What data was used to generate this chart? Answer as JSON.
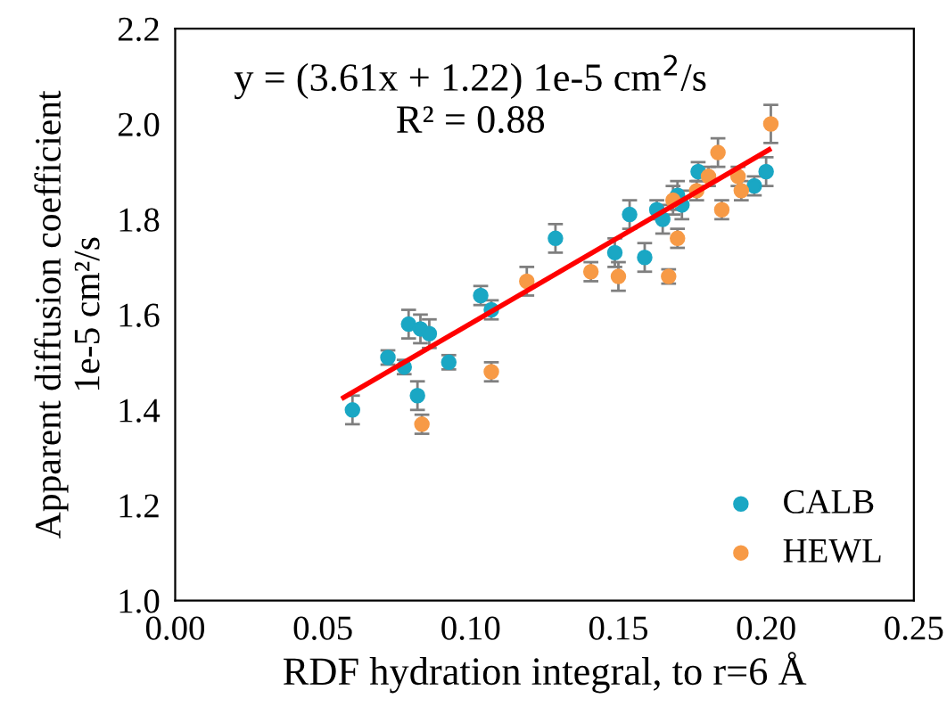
{
  "chart_data": {
    "type": "scatter",
    "xlabel": "RDF hydration integral, to r=6 Å",
    "ylabel": "Apparent diffusion coefficient\n1e-5 cm²/s",
    "series": [
      {
        "name": "CALB",
        "color": "#1aa7c4",
        "x": [
          0.06,
          0.072,
          0.0775,
          0.079,
          0.083,
          0.086,
          0.082,
          0.0926,
          0.1034,
          0.107,
          0.1287,
          0.1488,
          0.1538,
          0.1589,
          0.163,
          0.165,
          0.17,
          0.1715,
          0.177,
          0.196,
          0.2
        ],
        "values": [
          1.4,
          1.51,
          1.49,
          1.58,
          1.57,
          1.56,
          1.43,
          1.5,
          1.64,
          1.61,
          1.76,
          1.73,
          1.81,
          1.72,
          1.82,
          1.8,
          1.85,
          1.83,
          1.9,
          1.87,
          1.9
        ],
        "errors": [
          0.03,
          0.015,
          0.015,
          0.03,
          0.03,
          0.03,
          0.03,
          0.015,
          0.02,
          0.02,
          0.03,
          0.03,
          0.03,
          0.03,
          0.02,
          0.03,
          0.03,
          0.03,
          0.02,
          0.02,
          0.03
        ]
      },
      {
        "name": "HEWL",
        "color": "#f79a46",
        "x": [
          0.0835,
          0.107,
          0.119,
          0.1407,
          0.15,
          0.167,
          0.1685,
          0.17,
          0.1765,
          0.1805,
          0.1837,
          0.185,
          0.1905,
          0.1916,
          0.2016
        ],
        "values": [
          1.37,
          1.48,
          1.67,
          1.69,
          1.68,
          1.68,
          1.84,
          1.76,
          1.86,
          1.89,
          1.94,
          1.82,
          1.89,
          1.86,
          2.0
        ],
        "errors": [
          0.02,
          0.02,
          0.03,
          0.02,
          0.03,
          0.015,
          0.03,
          0.02,
          0.02,
          0.02,
          0.03,
          0.02,
          0.02,
          0.02,
          0.04
        ]
      },
      {
        "type": "line",
        "marker": "none",
        "color": "#ff0000",
        "x": [
          0.057,
          0.201
        ],
        "values": [
          1.426,
          1.946
        ]
      }
    ],
    "annotations": [
      "y = (3.61x + 1.22) 1e-5 cm$^{2}$/s",
      "R² = 0.88"
    ],
    "xlim": [
      0,
      0.25
    ],
    "xticks": [
      {
        "value": 0,
        "label": "0.00"
      },
      0.05,
      {
        "value": 0.1,
        "label": "0.10"
      },
      0.15,
      {
        "value": 0.2,
        "label": "0.20"
      },
      0.25
    ],
    "ylim": [
      1.0,
      2.2
    ],
    "yticks": [
      {
        "value": 1.0,
        "label": "1.0"
      },
      1.2,
      1.4,
      1.6,
      1.8,
      {
        "value": 2.0,
        "label": "2.0"
      },
      2.2
    ],
    "marker": "circle",
    "grid": false,
    "legend": "bottom right"
  }
}
